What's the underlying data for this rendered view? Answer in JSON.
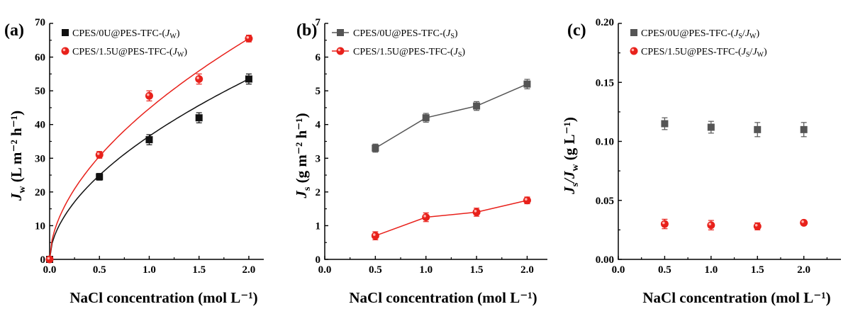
{
  "chart_data": [
    {
      "panel_label": "(a)",
      "type": "scatter",
      "x": [
        0.0,
        0.5,
        1.0,
        1.5,
        2.0
      ],
      "xlim": [
        0,
        2.15
      ],
      "ylim": [
        0,
        70
      ],
      "xticks": [
        "0.0",
        "0.5",
        "1.0",
        "1.5",
        "2.0"
      ],
      "yticks": [
        "0",
        "10",
        "20",
        "30",
        "40",
        "50",
        "60",
        "70"
      ],
      "xlabel": "NaCl concentration (mol L⁻¹)",
      "ylabel": "J_w (L m⁻² h⁻¹)",
      "ylabel_main": "J",
      "ylabel_sub": "w",
      "ylabel_rest": " (L m⁻² h⁻¹)",
      "legend_position": "top-left",
      "grid": false,
      "series": [
        {
          "name": "CPES/0U@PES-TFC-(J_W)",
          "legend_main": "CPES/0U@PES-TFC-(",
          "legend_sym": "J",
          "legend_sub": "W",
          "legend_tail": ")",
          "marker": "square",
          "color": "#111111",
          "x": [
            0.0,
            0.5,
            1.0,
            1.5,
            2.0
          ],
          "values": [
            0.0,
            24.5,
            35.5,
            42.0,
            53.5
          ],
          "errors": [
            0.5,
            1.0,
            1.5,
            1.5,
            1.5
          ],
          "fit_line": true
        },
        {
          "name": "CPES/1.5U@PES-TFC-(J_W)",
          "legend_main": "CPES/1.5U@PES-TFC-(",
          "legend_sym": "J",
          "legend_sub": "W",
          "legend_tail": ")",
          "marker": "circle",
          "color": "#e8211b",
          "x": [
            0.0,
            0.5,
            1.0,
            1.5,
            2.0
          ],
          "values": [
            0.0,
            31.0,
            48.5,
            53.5,
            65.5
          ],
          "errors": [
            0.5,
            1.0,
            1.5,
            1.5,
            1.0
          ],
          "fit_line": true
        }
      ]
    },
    {
      "panel_label": "(b)",
      "type": "line",
      "x": [
        0.5,
        1.0,
        1.5,
        2.0
      ],
      "xlim": [
        0,
        2.2
      ],
      "ylim": [
        0,
        7
      ],
      "xticks": [
        "0.0",
        "0.5",
        "1.0",
        "1.5",
        "2.0"
      ],
      "yticks": [
        "0",
        "1",
        "2",
        "3",
        "4",
        "5",
        "6",
        "7"
      ],
      "xlabel": "NaCl concentration (mol L⁻¹)",
      "ylabel": "J_s (g m⁻² h⁻¹)",
      "ylabel_main": "J",
      "ylabel_sub": "s",
      "ylabel_rest": " (g m⁻² h⁻¹)",
      "legend_position": "top-left",
      "grid": false,
      "series": [
        {
          "name": "CPES/0U@PES-TFC-(J_S)",
          "legend_main": "CPES/0U@PES-TFC-(",
          "legend_sym": "J",
          "legend_sub": "S",
          "legend_tail": ")",
          "marker": "square",
          "color": "#555555",
          "x": [
            0.5,
            1.0,
            1.5,
            2.0
          ],
          "values": [
            3.3,
            4.2,
            4.55,
            5.2
          ],
          "errors": [
            0.12,
            0.13,
            0.13,
            0.14
          ]
        },
        {
          "name": "CPES/1.5U@PES-TFC-(J_S)",
          "legend_main": "CPES/1.5U@PES-TFC-(",
          "legend_sym": "J",
          "legend_sub": "S",
          "legend_tail": ")",
          "marker": "circle",
          "color": "#e8211b",
          "x": [
            0.5,
            1.0,
            1.5,
            2.0
          ],
          "values": [
            0.7,
            1.25,
            1.4,
            1.75
          ],
          "errors": [
            0.12,
            0.13,
            0.12,
            0.1
          ]
        }
      ]
    },
    {
      "panel_label": "(c)",
      "type": "scatter",
      "x": [
        0.5,
        1.0,
        1.5,
        2.0
      ],
      "xlim": [
        0,
        2.4
      ],
      "ylim": [
        0,
        0.2
      ],
      "xticks": [
        "0.0",
        "0.5",
        "1.0",
        "1.5",
        "2.0"
      ],
      "yticks": [
        "0.00",
        "0.05",
        "0.10",
        "0.15",
        "0.20"
      ],
      "xlabel": "NaCl concentration (mol L⁻¹)",
      "ylabel": "J_s/J_w (g L⁻¹)",
      "ylabel_main": "J",
      "ylabel_sub": "s",
      "ylabel_main2": "/J",
      "ylabel_sub2": "w",
      "ylabel_rest": " (g L⁻¹)",
      "legend_position": "top-left",
      "grid": false,
      "series": [
        {
          "name": "CPES/0U@PES-TFC-(J_S/J_W)",
          "legend_main": "CPES/0U@PES-TFC-(",
          "legend_sym": "J",
          "legend_sub": "S",
          "legend_mid": "/",
          "legend_sym2": "J",
          "legend_sub2": "W",
          "legend_tail": ")",
          "marker": "square",
          "color": "#555555",
          "x": [
            0.5,
            1.0,
            1.5,
            2.0
          ],
          "values": [
            0.115,
            0.112,
            0.11,
            0.11
          ],
          "errors": [
            0.005,
            0.005,
            0.006,
            0.006
          ]
        },
        {
          "name": "CPES/1.5U@PES-TFC-(J_S/J_W)",
          "legend_main": "CPES/1.5U@PES-TFC-(",
          "legend_sym": "J",
          "legend_sub": "S",
          "legend_mid": "/",
          "legend_sym2": "J",
          "legend_sub2": "W",
          "legend_tail": ")",
          "marker": "circle",
          "color": "#e8211b",
          "x": [
            0.5,
            1.0,
            1.5,
            2.0
          ],
          "values": [
            0.03,
            0.029,
            0.028,
            0.031
          ],
          "errors": [
            0.004,
            0.004,
            0.003,
            0.002
          ]
        }
      ]
    }
  ]
}
